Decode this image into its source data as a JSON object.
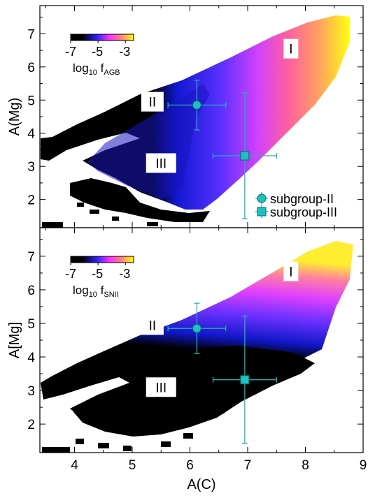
{
  "chart_data": {
    "type": "heatmap",
    "x_axis": {
      "label": "A(C)",
      "lim": [
        3.4,
        9.0
      ],
      "ticks": [
        4,
        5,
        6,
        7,
        8,
        9
      ]
    },
    "colorbar": {
      "ticks": [
        -7,
        -5,
        -3
      ],
      "range": [
        -7,
        -2.4
      ],
      "colors": [
        "#000000",
        "#3020ff",
        "#ff30ff",
        "#ff8080",
        "#ffff00"
      ]
    },
    "panels": [
      {
        "id": "top",
        "ylabel": "A(Mg)",
        "ylim": [
          1.15,
          7.85
        ],
        "yticks": [
          2,
          3,
          4,
          5,
          6,
          7
        ],
        "colorbar_label": "log",
        "colorbar_label_sub": "10",
        "colorbar_label_var": " f",
        "colorbar_label_var_sub": "AGB",
        "regions": [
          {
            "label": "I",
            "x": 7.75,
            "y": 6.55
          },
          {
            "label": "II",
            "x": 5.35,
            "y": 4.95
          },
          {
            "label": "III",
            "x": 5.5,
            "y": 3.1
          }
        ],
        "points": [
          {
            "series": "subgroup-II",
            "marker": "circle",
            "x": 6.12,
            "y": 4.85,
            "xerr": 0.5,
            "yerr": 0.75
          },
          {
            "series": "subgroup-III",
            "marker": "square",
            "x": 6.95,
            "y": 3.32,
            "xerr": 0.55,
            "yerr": 1.9
          }
        ],
        "legend": {
          "placement": "lower-right",
          "entries": [
            {
              "label": "subgroup-II",
              "marker": "circle"
            },
            {
              "label": "subgroup-III",
              "marker": "square"
            }
          ]
        }
      },
      {
        "id": "bottom",
        "ylabel": "A[Mg]",
        "ylim": [
          1.15,
          7.85
        ],
        "yticks": [
          2,
          3,
          4,
          5,
          6,
          7
        ],
        "colorbar_label": "log",
        "colorbar_label_sub": "10",
        "colorbar_label_var": " f",
        "colorbar_label_var_sub": "SNII",
        "regions": [
          {
            "label": "I",
            "x": 7.75,
            "y": 6.55
          },
          {
            "label": "II",
            "x": 5.35,
            "y": 4.95
          },
          {
            "label": "III",
            "x": 5.5,
            "y": 3.1
          }
        ],
        "points": [
          {
            "series": "subgroup-II",
            "marker": "circle",
            "x": 6.12,
            "y": 4.85,
            "xerr": 0.5,
            "yerr": 0.75
          },
          {
            "series": "subgroup-III",
            "marker": "square",
            "x": 6.95,
            "y": 3.32,
            "xerr": 0.55,
            "yerr": 1.9
          }
        ]
      }
    ]
  },
  "colors": {
    "marker_fill": "#20c0c0",
    "marker_edge": "#006868",
    "errorbar": "#20b0b0"
  }
}
